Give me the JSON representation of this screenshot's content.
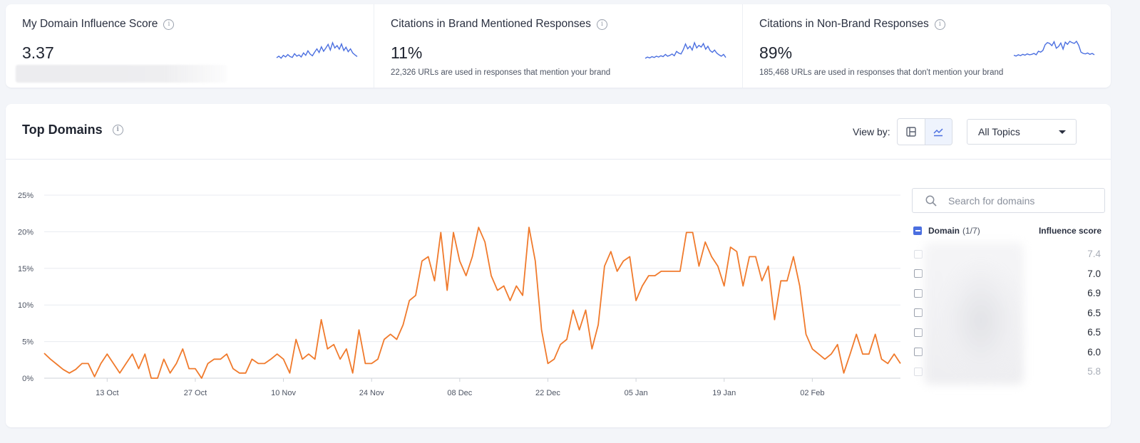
{
  "kpis": [
    {
      "title": "My Domain Influence Score",
      "value": "3.37",
      "subtitle": ""
    },
    {
      "title": "Citations in Brand Mentioned Responses",
      "value": "11%",
      "subtitle": "22,326 URLs are used in responses that mention your brand"
    },
    {
      "title": "Citations in Non-Brand Responses",
      "value": "89%",
      "subtitle": "185,468 URLs are used in responses that don't mention your brand"
    }
  ],
  "card": {
    "title": "Top Domains",
    "view_by_label": "View by:",
    "topics_select": "All Topics"
  },
  "search": {
    "placeholder": "Search for domains"
  },
  "domain_table": {
    "domain_header": "Domain",
    "domain_count": "(1/7)",
    "score_header": "Influence score",
    "rows": [
      {
        "score": "7.4",
        "faded": true
      },
      {
        "score": "7.0",
        "faded": false
      },
      {
        "score": "6.9",
        "faded": false
      },
      {
        "score": "6.5",
        "faded": false
      },
      {
        "score": "6.5",
        "faded": false
      },
      {
        "score": "6.0",
        "faded": false
      },
      {
        "score": "5.8",
        "faded": true
      }
    ]
  },
  "colors": {
    "line": "#f07a2c",
    "sparkline": "#4b6fe0",
    "accent": "#4b6fe0"
  },
  "icons": {
    "info": "info-icon",
    "table_view": "table-view-icon",
    "chart_view": "line-chart-icon",
    "search": "search-icon",
    "dropdown": "caret-down-icon"
  },
  "chart_data": {
    "type": "line",
    "y_ticks": [
      "0%",
      "5%",
      "10%",
      "15%",
      "20%",
      "25%"
    ],
    "ylim": [
      0,
      25
    ],
    "x_ticks": [
      {
        "label": "13 Oct",
        "index": 10
      },
      {
        "label": "27 Oct",
        "index": 24
      },
      {
        "label": "10 Nov",
        "index": 38
      },
      {
        "label": "24 Nov",
        "index": 52
      },
      {
        "label": "08 Dec",
        "index": 66
      },
      {
        "label": "22 Dec",
        "index": 80
      },
      {
        "label": "05 Jan",
        "index": 94
      },
      {
        "label": "19 Jan",
        "index": 108
      },
      {
        "label": "02 Feb",
        "index": 122
      }
    ],
    "grid": true,
    "series": [
      {
        "values": [
          3.4,
          2.6,
          1.9,
          1.2,
          0.7,
          1.2,
          2.0,
          2.0,
          0.2,
          2.0,
          3.3,
          2.0,
          0.7,
          2.0,
          3.3,
          1.3,
          3.3,
          0.0,
          0.0,
          2.6,
          0.7,
          2.0,
          4.0,
          1.3,
          1.3,
          0.0,
          2.0,
          2.6,
          2.6,
          3.3,
          1.3,
          0.7,
          0.7,
          2.6,
          2.0,
          2.0,
          2.6,
          3.3,
          2.6,
          0.7,
          5.3,
          2.6,
          3.3,
          2.6,
          8.0,
          4.0,
          4.6,
          2.6,
          4.0,
          0.7,
          6.6,
          2.0,
          2.0,
          2.6,
          5.3,
          6.0,
          5.3,
          7.3,
          10.6,
          11.3,
          16.0,
          16.6,
          13.3,
          19.9,
          12.0,
          19.9,
          16.0,
          14.0,
          16.6,
          20.6,
          18.6,
          14.0,
          12.0,
          12.6,
          10.6,
          12.6,
          11.3,
          20.6,
          16.0,
          6.6,
          2.0,
          2.6,
          4.6,
          5.3,
          9.3,
          6.6,
          9.3,
          4.0,
          7.3,
          15.3,
          17.3,
          14.6,
          16.0,
          16.6,
          10.6,
          12.6,
          14.0,
          14.0,
          14.6,
          14.6,
          14.6,
          14.6,
          19.9,
          19.9,
          15.3,
          18.6,
          16.6,
          15.3,
          12.6,
          17.9,
          17.3,
          12.6,
          16.6,
          16.6,
          13.3,
          15.3,
          8.0,
          13.3,
          13.3,
          16.6,
          12.6,
          6.0,
          4.0,
          3.3,
          2.6,
          3.3,
          4.6,
          0.7,
          3.3,
          6.0,
          3.3,
          3.3,
          6.0,
          2.6,
          2.0,
          3.3,
          2.0
        ],
        "color": "#f07a2c"
      }
    ]
  },
  "sparklines": [
    {
      "values": [
        1.2,
        1.6,
        1.1,
        1.8,
        1.4,
        2.0,
        1.5,
        1.3,
        2.2,
        1.6,
        1.9,
        1.4,
        2.4,
        1.8,
        2.9,
        2.1,
        1.7,
        2.6,
        3.4,
        2.5,
        3.9,
        2.8,
        3.6,
        4.5,
        3.1,
        4.9,
        3.6,
        4.2,
        3.3,
        4.6,
        3.0,
        3.8,
        2.7,
        3.4,
        2.4,
        1.9,
        1.5
      ]
    },
    {
      "values": [
        1.0,
        1.3,
        1.1,
        1.4,
        1.2,
        1.5,
        1.3,
        1.6,
        1.4,
        1.9,
        1.5,
        1.7,
        2.0,
        1.6,
        2.6,
        2.2,
        2.0,
        3.0,
        4.3,
        3.2,
        3.8,
        2.9,
        4.6,
        3.4,
        4.0,
        3.6,
        4.4,
        3.1,
        3.8,
        2.8,
        2.4,
        2.9,
        2.2,
        1.8,
        1.5,
        1.9,
        1.2
      ]
    },
    {
      "values": [
        1.4,
        1.2,
        1.5,
        1.3,
        1.6,
        1.4,
        1.7,
        1.5,
        1.6,
        1.8,
        1.5,
        2.3,
        2.1,
        2.5,
        3.8,
        4.3,
        4.1,
        3.6,
        4.5,
        3.0,
        3.4,
        4.2,
        2.8,
        4.4,
        3.9,
        4.6,
        4.3,
        4.1,
        4.6,
        3.7,
        2.1,
        1.8,
        1.7,
        1.9,
        1.6,
        1.8,
        1.5
      ]
    }
  ]
}
